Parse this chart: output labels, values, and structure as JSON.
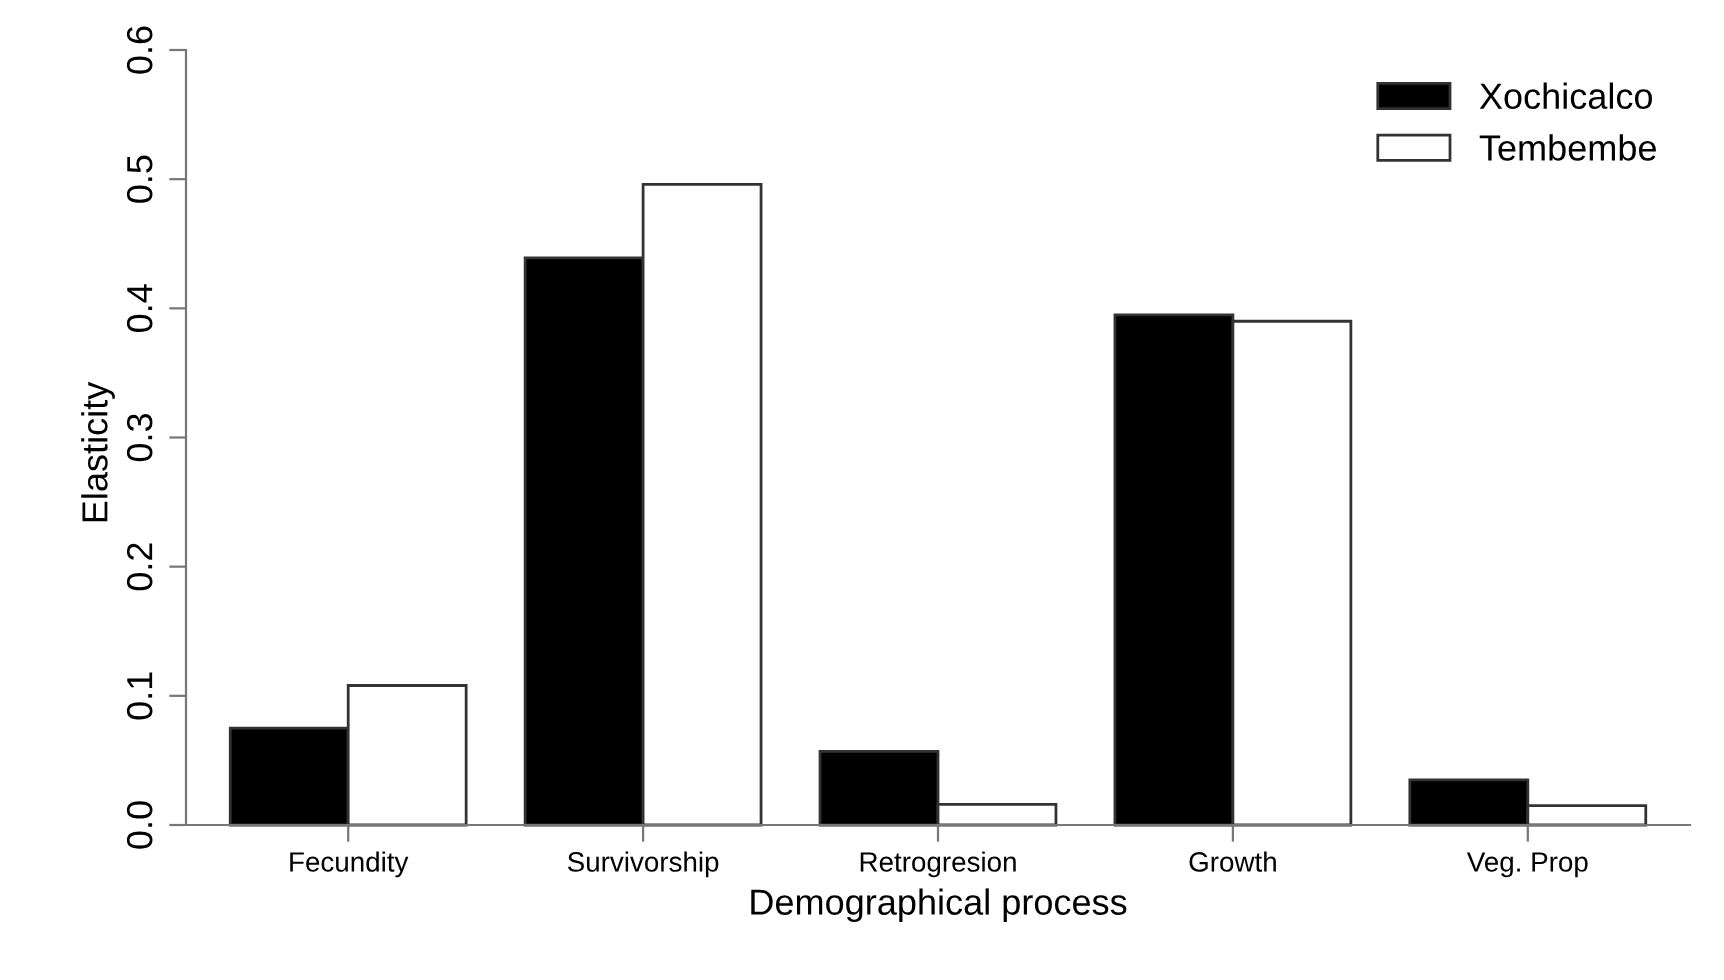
{
  "chart_data": {
    "type": "bar",
    "xlabel": "Demographical process",
    "ylabel": "Elasticity",
    "categories": [
      "Fecundity",
      "Survivorship",
      "Retrogresion",
      "Growth",
      "Veg. Prop"
    ],
    "series": [
      {
        "name": "Xochicalco",
        "color": "#000000",
        "values": [
          0.075,
          0.439,
          0.057,
          0.395,
          0.035
        ]
      },
      {
        "name": "Tembembe",
        "color": "#ffffff",
        "values": [
          0.108,
          0.496,
          0.016,
          0.39,
          0.015
        ]
      }
    ],
    "ylim": [
      0,
      0.6
    ],
    "yticks": [
      {
        "value": 0,
        "label": "0.0"
      },
      0.1,
      0.2,
      0.3,
      0.4,
      0.5,
      0.6
    ],
    "grid": false,
    "legend": "top right"
  }
}
